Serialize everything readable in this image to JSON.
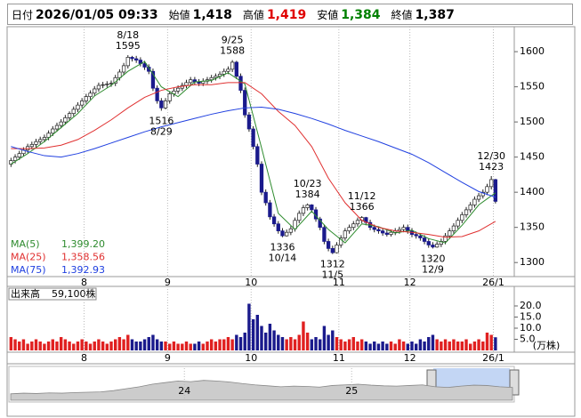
{
  "header": {
    "items": [
      {
        "label": "日付",
        "value": "2026/01/05 09:33",
        "color": "#000000"
      },
      {
        "label": "始値",
        "value": "1,418",
        "color": "#000000"
      },
      {
        "label": "高値",
        "value": "1,419",
        "color": "#e00000"
      },
      {
        "label": "安値",
        "value": "1,384",
        "color": "#008000"
      },
      {
        "label": "終値",
        "value": "1,387",
        "color": "#000000"
      }
    ]
  },
  "chart_data": [
    {
      "type": "candlestick",
      "up_color": "#ffffff",
      "down_color": "#1a1a8c",
      "xlim": [
        -0.5,
        120.5
      ],
      "ylim": [
        1280,
        1633
      ],
      "yticks": [
        1600,
        1550,
        1500,
        1450,
        1400,
        1350,
        1300
      ],
      "xticks": [
        {
          "value": 18,
          "label": "8"
        },
        {
          "value": 38,
          "label": "9"
        },
        {
          "value": 58,
          "label": "10"
        },
        {
          "value": 79,
          "label": "11"
        },
        {
          "value": 96,
          "label": "12"
        },
        {
          "value": 116,
          "label": "26/1"
        }
      ],
      "open": [
        1440,
        1445,
        1450,
        1455,
        1460,
        1465,
        1468,
        1472,
        1475,
        1478,
        1484,
        1490,
        1495,
        1500,
        1506,
        1512,
        1518,
        1524,
        1530,
        1536,
        1541,
        1547,
        1552,
        1553,
        1554,
        1555,
        1563,
        1571,
        1580,
        1592,
        1590,
        1588,
        1583,
        1578,
        1572,
        1548,
        1530,
        1520,
        1530,
        1540,
        1544,
        1548,
        1552,
        1556,
        1560,
        1557,
        1555,
        1558,
        1560,
        1563,
        1565,
        1568,
        1572,
        1575,
        1585,
        1565,
        1545,
        1510,
        1490,
        1465,
        1440,
        1400,
        1385,
        1365,
        1355,
        1345,
        1338,
        1343,
        1348,
        1360,
        1370,
        1378,
        1382,
        1375,
        1362,
        1350,
        1330,
        1320,
        1314,
        1325,
        1335,
        1345,
        1350,
        1355,
        1360,
        1364,
        1357,
        1350,
        1347,
        1345,
        1342,
        1340,
        1343,
        1345,
        1347,
        1350,
        1345,
        1340,
        1338,
        1335,
        1330,
        1325,
        1322,
        1326,
        1330,
        1338,
        1345,
        1352,
        1360,
        1368,
        1375,
        1382,
        1390,
        1395,
        1400,
        1408,
        1418
      ],
      "high": [
        1449,
        1454,
        1459,
        1464,
        1469,
        1472,
        1476,
        1479,
        1482,
        1488,
        1494,
        1499,
        1504,
        1510,
        1515,
        1522,
        1528,
        1534,
        1540,
        1545,
        1551,
        1556,
        1557,
        1558,
        1559,
        1567,
        1575,
        1584,
        1595,
        1594,
        1594,
        1592,
        1587,
        1582,
        1576,
        1552,
        1534,
        1534,
        1544,
        1548,
        1552,
        1556,
        1560,
        1564,
        1564,
        1561,
        1562,
        1564,
        1567,
        1569,
        1572,
        1576,
        1579,
        1588,
        1587,
        1569,
        1549,
        1514,
        1494,
        1469,
        1444,
        1404,
        1389,
        1369,
        1359,
        1349,
        1347,
        1352,
        1364,
        1374,
        1382,
        1384,
        1383,
        1379,
        1365,
        1354,
        1334,
        1324,
        1329,
        1339,
        1349,
        1354,
        1359,
        1364,
        1366,
        1365,
        1361,
        1354,
        1351,
        1349,
        1346,
        1347,
        1349,
        1351,
        1354,
        1354,
        1349,
        1344,
        1342,
        1339,
        1334,
        1329,
        1330,
        1334,
        1342,
        1349,
        1356,
        1364,
        1372,
        1379,
        1386,
        1394,
        1399,
        1404,
        1412,
        1423,
        1419
      ],
      "low": [
        1436,
        1441,
        1446,
        1451,
        1456,
        1461,
        1464,
        1468,
        1471,
        1474,
        1480,
        1486,
        1491,
        1496,
        1502,
        1508,
        1514,
        1520,
        1526,
        1532,
        1537,
        1543,
        1548,
        1549,
        1550,
        1551,
        1559,
        1567,
        1576,
        1586,
        1584,
        1579,
        1574,
        1568,
        1544,
        1526,
        1516,
        1518,
        1526,
        1536,
        1540,
        1544,
        1548,
        1552,
        1553,
        1551,
        1551,
        1554,
        1556,
        1559,
        1561,
        1564,
        1568,
        1571,
        1561,
        1541,
        1506,
        1486,
        1461,
        1436,
        1396,
        1381,
        1361,
        1351,
        1341,
        1336,
        1337,
        1339,
        1344,
        1356,
        1366,
        1374,
        1371,
        1358,
        1346,
        1326,
        1316,
        1312,
        1313,
        1321,
        1331,
        1341,
        1346,
        1351,
        1356,
        1353,
        1346,
        1343,
        1341,
        1338,
        1337,
        1337,
        1339,
        1341,
        1343,
        1341,
        1336,
        1334,
        1331,
        1326,
        1321,
        1320,
        1321,
        1322,
        1326,
        1334,
        1341,
        1348,
        1356,
        1364,
        1371,
        1378,
        1386,
        1391,
        1396,
        1404,
        1384
      ],
      "close": [
        1445,
        1450,
        1455,
        1460,
        1465,
        1468,
        1472,
        1475,
        1478,
        1484,
        1490,
        1495,
        1500,
        1506,
        1512,
        1518,
        1524,
        1530,
        1536,
        1541,
        1547,
        1552,
        1553,
        1554,
        1555,
        1563,
        1571,
        1580,
        1592,
        1590,
        1588,
        1583,
        1578,
        1572,
        1548,
        1530,
        1520,
        1530,
        1540,
        1544,
        1548,
        1552,
        1556,
        1560,
        1557,
        1555,
        1558,
        1560,
        1563,
        1565,
        1568,
        1572,
        1575,
        1585,
        1565,
        1545,
        1510,
        1490,
        1465,
        1440,
        1400,
        1385,
        1365,
        1355,
        1345,
        1338,
        1343,
        1348,
        1360,
        1370,
        1378,
        1382,
        1375,
        1362,
        1350,
        1330,
        1320,
        1314,
        1325,
        1335,
        1345,
        1350,
        1355,
        1360,
        1364,
        1357,
        1350,
        1347,
        1345,
        1342,
        1340,
        1343,
        1345,
        1347,
        1350,
        1345,
        1340,
        1338,
        1335,
        1330,
        1325,
        1322,
        1326,
        1330,
        1338,
        1345,
        1352,
        1360,
        1368,
        1375,
        1382,
        1390,
        1395,
        1400,
        1408,
        1418,
        1387
      ],
      "lines": [
        {
          "name": "MA(5)",
          "color": "#2e8b2e",
          "value_label": "1,399.20",
          "x": [
            0,
            4,
            8,
            12,
            16,
            20,
            24,
            28,
            32,
            36,
            40,
            44,
            48,
            52,
            56,
            60,
            64,
            68,
            72,
            76,
            80,
            84,
            88,
            92,
            96,
            100,
            104,
            108,
            112,
            116
          ],
          "values": [
            1440,
            1455,
            1472,
            1492,
            1512,
            1537,
            1552,
            1572,
            1586,
            1550,
            1536,
            1557,
            1559,
            1570,
            1554,
            1463,
            1370,
            1347,
            1373,
            1347,
            1328,
            1355,
            1351,
            1342,
            1346,
            1334,
            1328,
            1353,
            1382,
            1399.2
          ]
        },
        {
          "name": "MA(25)",
          "color": "#e03030",
          "value_label": "1,358.56",
          "x": [
            0,
            4,
            8,
            12,
            16,
            20,
            24,
            28,
            32,
            36,
            40,
            44,
            48,
            52,
            56,
            60,
            64,
            68,
            72,
            76,
            80,
            84,
            88,
            92,
            96,
            100,
            104,
            108,
            112,
            116
          ],
          "values": [
            1462,
            1462,
            1463,
            1467,
            1475,
            1488,
            1503,
            1520,
            1535,
            1545,
            1550,
            1553,
            1553,
            1556,
            1556,
            1540,
            1515,
            1495,
            1465,
            1420,
            1385,
            1360,
            1350,
            1345,
            1343,
            1340,
            1336,
            1337,
            1345,
            1358.56
          ]
        },
        {
          "name": "MA(75)",
          "color": "#2040e0",
          "value_label": "1,392.93",
          "x": [
            0,
            4,
            8,
            12,
            16,
            20,
            24,
            28,
            32,
            36,
            40,
            44,
            48,
            52,
            56,
            60,
            64,
            68,
            72,
            76,
            80,
            84,
            88,
            92,
            96,
            100,
            104,
            108,
            112,
            116
          ],
          "values": [
            1465,
            1458,
            1452,
            1450,
            1455,
            1462,
            1470,
            1478,
            1486,
            1493,
            1499,
            1505,
            1511,
            1516,
            1520,
            1521,
            1518,
            1512,
            1505,
            1497,
            1488,
            1480,
            1472,
            1463,
            1454,
            1442,
            1428,
            1414,
            1401,
            1392.93
          ]
        }
      ],
      "annotations": [
        {
          "date": "8/18",
          "price": 1595,
          "mark": "high"
        },
        {
          "date": "8/29",
          "price": 1516,
          "mark": "low"
        },
        {
          "date": "9/25",
          "price": 1588,
          "mark": "high"
        },
        {
          "date": "10/14",
          "price": 1336,
          "mark": "low"
        },
        {
          "date": "10/23",
          "price": 1384,
          "mark": "high"
        },
        {
          "date": "11/5",
          "price": 1312,
          "mark": "low"
        },
        {
          "date": "11/12",
          "price": 1366,
          "mark": "high"
        },
        {
          "date": "12/9",
          "price": 1320,
          "mark": "low"
        },
        {
          "date": "12/30",
          "price": 1423,
          "mark": "high"
        }
      ]
    },
    {
      "type": "bar",
      "title": "出来高",
      "value_label": "59,100株",
      "unit": "(万株)",
      "up_color": "#e02020",
      "down_color": "#1a1a8c",
      "ylim": [
        0,
        28
      ],
      "yticks": [
        {
          "value": 20,
          "label": "20.0"
        },
        {
          "value": 15,
          "label": "15.0"
        },
        {
          "value": 10,
          "label": "10.0"
        },
        {
          "value": 5,
          "label": "5.0"
        }
      ],
      "values": [
        6,
        5,
        4,
        5,
        3,
        4,
        5,
        4,
        3,
        4,
        5,
        4,
        6,
        5,
        4,
        3,
        4,
        5,
        4,
        3,
        4,
        5,
        4,
        3,
        4,
        5,
        6,
        5,
        7,
        5,
        4,
        4,
        5,
        6,
        7,
        5,
        4,
        4,
        3,
        4,
        3,
        3,
        4,
        3,
        3,
        4,
        3,
        4,
        5,
        4,
        5,
        5,
        6,
        5,
        7,
        6,
        8,
        21,
        14,
        16,
        11,
        8,
        12,
        9,
        7,
        6,
        5,
        6,
        5,
        7,
        13,
        8,
        5,
        6,
        5,
        11,
        7,
        9,
        6,
        5,
        4,
        5,
        6,
        4,
        5,
        4,
        3,
        4,
        3,
        4,
        3,
        4,
        3,
        5,
        4,
        3,
        4,
        3,
        5,
        4,
        6,
        7,
        5,
        4,
        5,
        4,
        5,
        4,
        4,
        5,
        3,
        4,
        5,
        4,
        8,
        7,
        5.91
      ]
    },
    {
      "type": "area",
      "xlim": [
        0,
        39
      ],
      "ylim": [
        0,
        100
      ],
      "xticks": [
        {
          "value": 13.5,
          "label": "24"
        },
        {
          "value": 26.5,
          "label": "25"
        }
      ],
      "values": [
        20,
        22,
        21,
        23,
        22,
        24,
        25,
        26,
        30,
        36,
        42,
        50,
        55,
        60,
        58,
        62,
        60,
        57,
        52,
        48,
        45,
        42,
        44,
        43,
        41,
        46,
        48,
        50,
        47,
        45,
        44,
        46,
        48,
        42,
        40,
        44,
        47,
        46,
        42,
        40
      ]
    }
  ]
}
